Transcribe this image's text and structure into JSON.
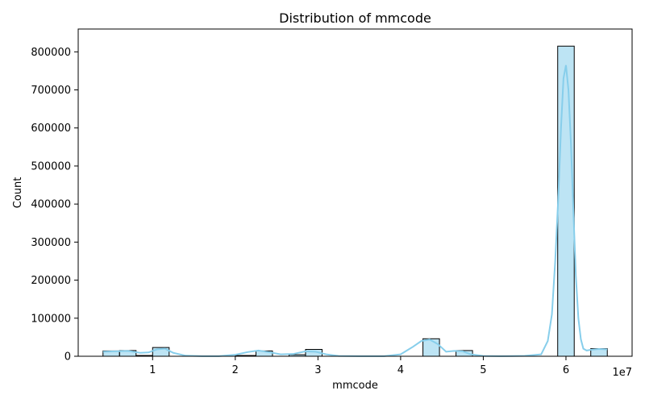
{
  "chart_data": {
    "type": "bar",
    "title": "Distribution of mmcode",
    "xlabel": "mmcode",
    "ylabel": "Count",
    "x_multiplier_label": "1e7",
    "xlim": [
      0.1,
      6.8
    ],
    "ylim": [
      0,
      860000
    ],
    "x_ticks": [
      {
        "value": 1,
        "label": "1"
      },
      {
        "value": 2,
        "label": "2"
      },
      {
        "value": 3,
        "label": "3"
      },
      {
        "value": 4,
        "label": "4"
      },
      {
        "value": 5,
        "label": "5"
      },
      {
        "value": 6,
        "label": "6"
      }
    ],
    "y_ticks": [
      {
        "value": 0,
        "label": "0"
      },
      {
        "value": 100000,
        "label": "100000"
      },
      {
        "value": 200000,
        "label": "200000"
      },
      {
        "value": 300000,
        "label": "300000"
      },
      {
        "value": 400000,
        "label": "400000"
      },
      {
        "value": 500000,
        "label": "500000"
      },
      {
        "value": 600000,
        "label": "600000"
      },
      {
        "value": 700000,
        "label": "700000"
      },
      {
        "value": 800000,
        "label": "800000"
      }
    ],
    "bins": [
      {
        "x0": 0.4,
        "x1": 0.6,
        "count": 14000
      },
      {
        "x0": 0.6,
        "x1": 0.8,
        "count": 15000
      },
      {
        "x0": 0.8,
        "x1": 1.0,
        "count": 2000
      },
      {
        "x0": 1.0,
        "x1": 1.2,
        "count": 23000
      },
      {
        "x0": 2.0,
        "x1": 2.25,
        "count": 2000
      },
      {
        "x0": 2.25,
        "x1": 2.45,
        "count": 14000
      },
      {
        "x0": 2.65,
        "x1": 2.85,
        "count": 4000
      },
      {
        "x0": 2.85,
        "x1": 3.05,
        "count": 18000
      },
      {
        "x0": 4.27,
        "x1": 4.47,
        "count": 46000
      },
      {
        "x0": 4.67,
        "x1": 4.87,
        "count": 15000
      },
      {
        "x0": 5.9,
        "x1": 6.1,
        "count": 815000
      },
      {
        "x0": 6.3,
        "x1": 6.5,
        "count": 20000
      }
    ],
    "kde": {
      "x": [
        0.4,
        0.55,
        0.7,
        0.85,
        0.95,
        1.05,
        1.15,
        1.25,
        1.4,
        1.6,
        1.8,
        2.0,
        2.15,
        2.28,
        2.4,
        2.55,
        2.7,
        2.85,
        2.97,
        3.1,
        3.25,
        3.5,
        3.8,
        4.0,
        4.15,
        4.25,
        4.35,
        4.45,
        4.55,
        4.65,
        4.75,
        4.85,
        5.0,
        5.2,
        5.5,
        5.7,
        5.78,
        5.83,
        5.87,
        5.91,
        5.94,
        5.97,
        6.0,
        6.03,
        6.06,
        6.09,
        6.12,
        6.15,
        6.18,
        6.21,
        6.25,
        6.3,
        6.4,
        6.5
      ],
      "y": [
        12000,
        13000,
        14000,
        9000,
        10000,
        18000,
        20000,
        9000,
        1500,
        300,
        300,
        4000,
        11000,
        15000,
        11000,
        5000,
        6000,
        13000,
        12000,
        5000,
        800,
        300,
        300,
        5000,
        25000,
        40000,
        44000,
        32000,
        12000,
        14000,
        13000,
        5000,
        800,
        300,
        1000,
        5000,
        40000,
        110000,
        250000,
        430000,
        600000,
        730000,
        765000,
        700000,
        560000,
        380000,
        210000,
        100000,
        45000,
        20000,
        15000,
        17000,
        19000,
        18000
      ]
    },
    "colors": {
      "bar_fill": "#87ceeb",
      "bar_fill_opacity": 0.55,
      "bar_edge": "#000000",
      "kde_line": "#87ceeb"
    },
    "grid": false,
    "legend": "none"
  }
}
